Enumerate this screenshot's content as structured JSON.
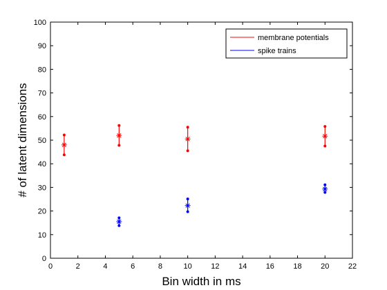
{
  "chart_data": {
    "type": "scatter",
    "title": "",
    "xlabel": "Bin width in ms",
    "ylabel": "# of latent dimensions",
    "xlim": [
      0,
      22
    ],
    "ylim": [
      0,
      100
    ],
    "xticks": [
      0,
      2,
      4,
      6,
      8,
      10,
      12,
      14,
      16,
      18,
      20,
      22
    ],
    "yticks": [
      0,
      10,
      20,
      30,
      40,
      50,
      60,
      70,
      80,
      90,
      100
    ],
    "grid": false,
    "legend_position": "top-right",
    "series": [
      {
        "name": "membrane potentials",
        "color": "#ff0000",
        "marker": "asterisk",
        "points": [
          {
            "x": 1,
            "y": 48,
            "lower": 43.8,
            "upper": 52.2
          },
          {
            "x": 5,
            "y": 52,
            "lower": 47.8,
            "upper": 56.2
          },
          {
            "x": 10,
            "y": 50.5,
            "lower": 45.5,
            "upper": 55.5
          },
          {
            "x": 20,
            "y": 51.7,
            "lower": 47.5,
            "upper": 55.8
          }
        ]
      },
      {
        "name": "spike trains",
        "color": "#0000ff",
        "marker": "asterisk",
        "points": [
          {
            "x": 5,
            "y": 15.5,
            "lower": 13.8,
            "upper": 17.1
          },
          {
            "x": 10,
            "y": 22.3,
            "lower": 19.7,
            "upper": 25.1
          },
          {
            "x": 20,
            "y": 29.3,
            "lower": 27.9,
            "upper": 31.1
          }
        ]
      }
    ]
  }
}
